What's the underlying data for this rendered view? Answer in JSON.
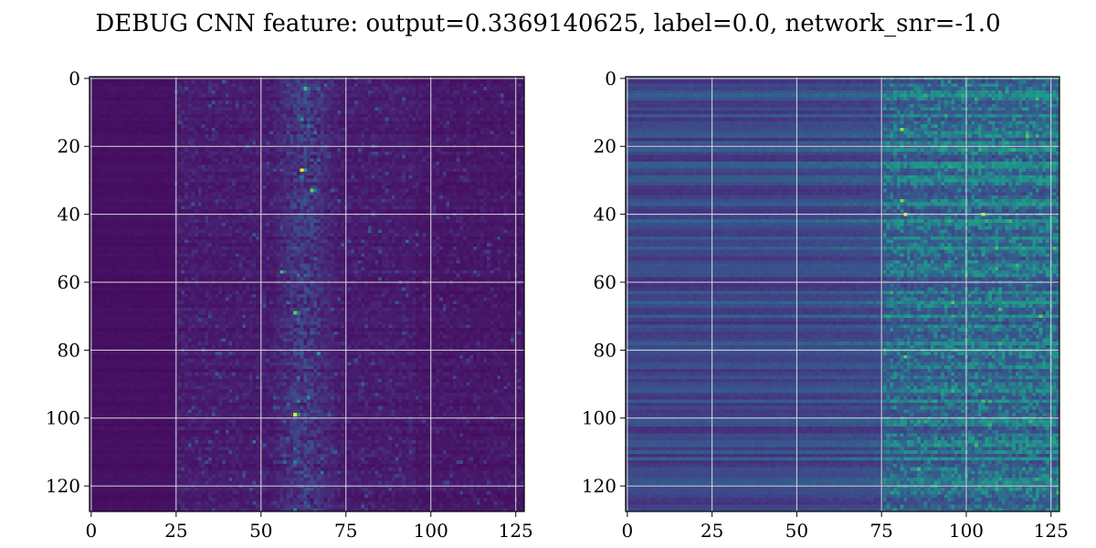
{
  "title": "DEBUG CNN feature: output=0.3369140625, label=0.0, network_snr=-1.0",
  "colormap": "viridis",
  "grid_color": "#d9d9d9",
  "chart_data": [
    {
      "type": "heatmap",
      "grid": true,
      "x_ticks": [
        "0",
        "25",
        "50",
        "75",
        "100",
        "125"
      ],
      "y_ticks": [
        "0",
        "20",
        "40",
        "60",
        "80",
        "100",
        "120"
      ],
      "x_tick_values": [
        0,
        25,
        50,
        75,
        100,
        125
      ],
      "y_tick_values": [
        0,
        20,
        40,
        60,
        80,
        100,
        120
      ],
      "xlim": [
        -0.5,
        127.5
      ],
      "ylim": [
        127.5,
        -0.5
      ],
      "shape": [
        128,
        128
      ],
      "pattern": "left region dark uniform up to column ~25, scattered moderate values beyond, bright vertical band around columns 55-70",
      "hotspots": [
        {
          "x": 62,
          "y": 27,
          "value": 1.0
        },
        {
          "x": 60,
          "y": 99,
          "value": 0.95
        },
        {
          "x": 65,
          "y": 33,
          "value": 0.75
        },
        {
          "x": 60,
          "y": 69,
          "value": 0.75
        },
        {
          "x": 63,
          "y": 3,
          "value": 0.7
        },
        {
          "x": 56,
          "y": 57,
          "value": 0.7
        }
      ]
    },
    {
      "type": "heatmap",
      "grid": true,
      "x_ticks": [
        "0",
        "25",
        "50",
        "75",
        "100",
        "125"
      ],
      "y_ticks": [
        "0",
        "20",
        "40",
        "60",
        "80",
        "100",
        "120"
      ],
      "x_tick_values": [
        0,
        25,
        50,
        75,
        100,
        125
      ],
      "y_tick_values": [
        0,
        20,
        40,
        60,
        80,
        100,
        120
      ],
      "xlim": [
        -0.5,
        127.5
      ],
      "ylim": [
        127.5,
        -0.5
      ],
      "shape": [
        128,
        128
      ],
      "pattern": "horizontal row stripes on left half, brighter noisy texture increasing to the right of column ~75",
      "hotspots": [
        {
          "x": 82,
          "y": 40,
          "value": 1.0
        },
        {
          "x": 105,
          "y": 40,
          "value": 0.9
        },
        {
          "x": 81,
          "y": 15,
          "value": 0.85
        },
        {
          "x": 81,
          "y": 36,
          "value": 0.8
        },
        {
          "x": 82,
          "y": 82,
          "value": 0.75
        },
        {
          "x": 86,
          "y": 115,
          "value": 0.7
        },
        {
          "x": 110,
          "y": 68,
          "value": 0.7
        }
      ]
    }
  ]
}
